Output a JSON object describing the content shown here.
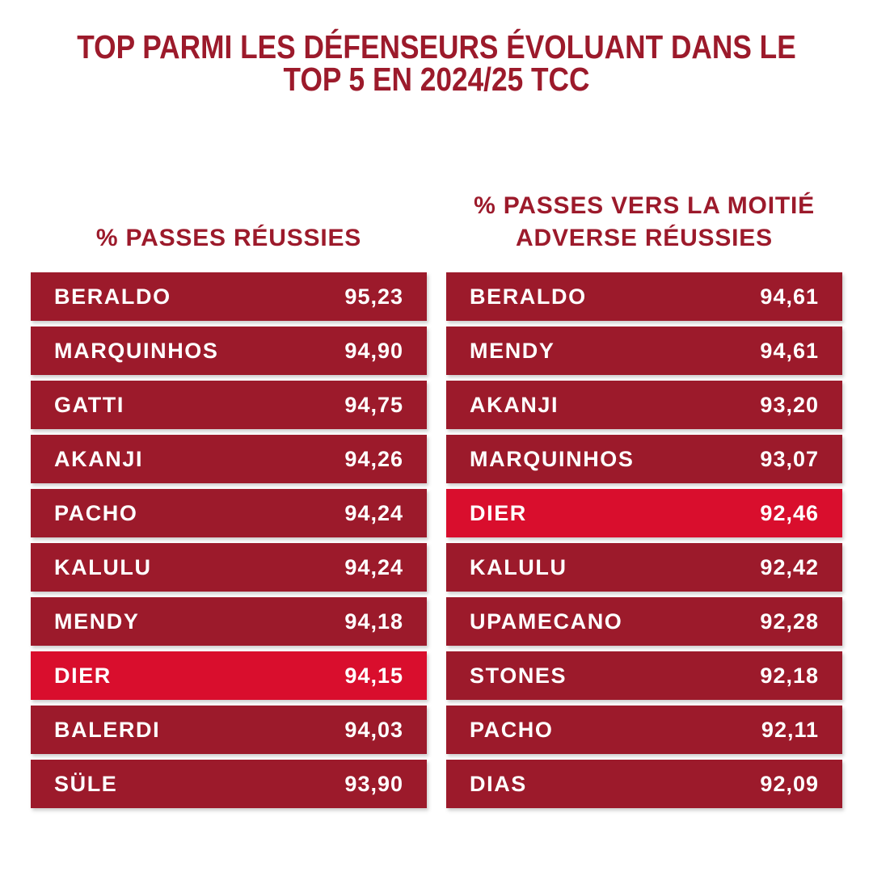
{
  "title": {
    "line1": "TOP PARMI LES DÉFENSEURS ÉVOLUANT DANS LE",
    "line2": "TOP 5 EN 2024/25 TCC"
  },
  "colors": {
    "ink": "#9C1A2B",
    "bar": "#9C1A2B",
    "highlight": "#D90E2D",
    "row_text": "#FFFFFF",
    "background": "#FFFFFF"
  },
  "chart_data": [
    {
      "type": "table",
      "title": "% PASSES RÉUSSIES",
      "title_lines": [
        "% PASSES RÉUSSIES"
      ],
      "categories": [
        "BERALDO",
        "MARQUINHOS",
        "GATTI",
        "AKANJI",
        "PACHO",
        "KALULU",
        "MENDY",
        "DIER",
        "BALERDI",
        "SÜLE"
      ],
      "values": [
        95.23,
        94.9,
        94.75,
        94.26,
        94.24,
        94.24,
        94.18,
        94.15,
        94.03,
        93.9
      ],
      "display_values": [
        "95,23",
        "94,90",
        "94,75",
        "94,26",
        "94,24",
        "94,24",
        "94,18",
        "94,15",
        "94,03",
        "93,90"
      ],
      "highlight_category": "DIER"
    },
    {
      "type": "table",
      "title": "% PASSES VERS LA MOITIÉ ADVERSE RÉUSSIES",
      "title_lines": [
        "% PASSES VERS LA MOITIÉ",
        "ADVERSE RÉUSSIES"
      ],
      "categories": [
        "BERALDO",
        "MENDY",
        "AKANJI",
        "MARQUINHOS",
        "DIER",
        "KALULU",
        "UPAMECANO",
        "STONES",
        "PACHO",
        "DIAS"
      ],
      "values": [
        94.61,
        94.61,
        93.2,
        93.07,
        92.46,
        92.42,
        92.28,
        92.18,
        92.11,
        92.09
      ],
      "display_values": [
        "94,61",
        "94,61",
        "93,20",
        "93,07",
        "92,46",
        "92,42",
        "92,28",
        "92,18",
        "92,11",
        "92,09"
      ],
      "highlight_category": "DIER"
    }
  ]
}
